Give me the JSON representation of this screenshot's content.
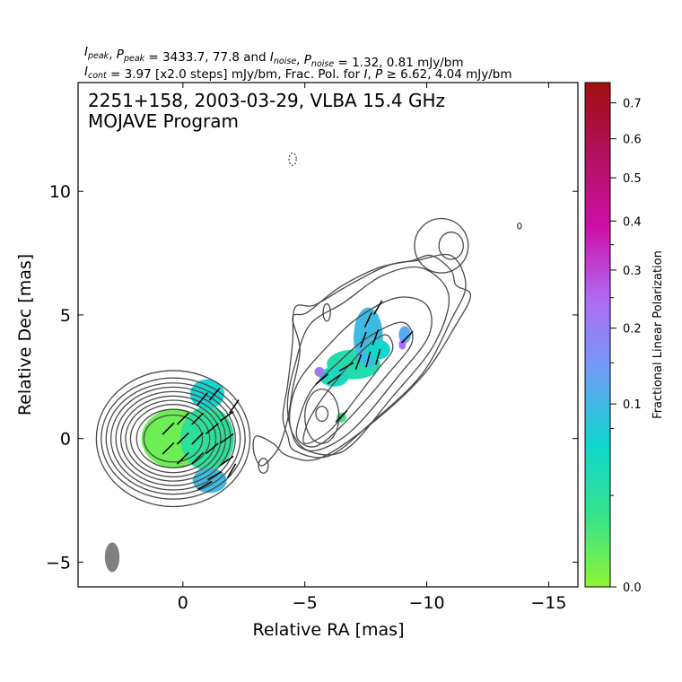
{
  "header": {
    "line1": "I_peak, P_peak = 3433.7, 77.8 and I_noise, P_noise = 1.32, 0.81 mJy/bm",
    "line2": "I_cont = 3.97 [x2.0 steps] mJy/bm, Frac. Pol. for I, P ≥ 6.62, 4.04 mJy/bm"
  },
  "plot_title": {
    "line1": "2251+158, 2003-03-29, VLBA 15.4 GHz",
    "line2": "MOJAVE Program"
  },
  "colorbar": {
    "label": "Fractional Linear Polarization",
    "ticks": [
      0.0,
      0.1,
      0.2,
      0.3,
      0.4,
      0.5,
      0.6,
      0.7
    ],
    "tick_labels": [
      "0.0",
      "0.1",
      "0.2",
      "0.3",
      "0.4",
      "0.5",
      "0.6",
      "0.7"
    ],
    "range": [
      0.0,
      0.76
    ],
    "colormap": [
      "#8ef534",
      "#34e28c",
      "#10d6d0",
      "#6f9ef8",
      "#b16af2",
      "#cd0fa8",
      "#b0125f",
      "#a00f0f"
    ]
  },
  "chart_data": {
    "type": "polarization_contour_map",
    "source": "2251+158",
    "date": "2003-03-29",
    "instrument": "VLBA 15.4 GHz",
    "program": "MOJAVE Program",
    "xlabel": "Relative RA [mas]",
    "ylabel": "Relative Dec [mas]",
    "xlim": [
      4.3,
      -16.2
    ],
    "ylim": [
      -6.0,
      14.4
    ],
    "xticks": [
      0,
      -5,
      -10,
      -15
    ],
    "xtick_labels": [
      "0",
      "−5",
      "−10",
      "−15"
    ],
    "yticks": [
      -5,
      0,
      5,
      10
    ],
    "ytick_labels": [
      "−5",
      "0",
      "5",
      "10"
    ],
    "I_peak_mJy_per_beam": 3433.7,
    "P_peak_mJy_per_beam": 77.8,
    "I_noise_mJy_per_beam": 1.32,
    "P_noise_mJy_per_beam": 0.81,
    "I_contour_base_mJy_per_beam": 3.97,
    "contour_step_factor": 2.0,
    "frac_pol_I_threshold_mJy_per_beam": 6.62,
    "frac_pol_P_threshold_mJy_per_beam": 4.04,
    "beam": {
      "ra": 2.9,
      "dec": -4.8,
      "major_mas": 1.2,
      "minor_mas": 0.6,
      "pa_deg": 0
    },
    "core_contours": {
      "center": [
        0.4,
        0.0
      ],
      "levels": [
        {
          "rx": 1.2,
          "ry": 0.95
        },
        {
          "rx": 1.5,
          "ry": 1.18
        },
        {
          "rx": 1.75,
          "ry": 1.38
        },
        {
          "rx": 1.95,
          "ry": 1.55
        },
        {
          "rx": 2.15,
          "ry": 1.72
        },
        {
          "rx": 2.35,
          "ry": 1.9
        },
        {
          "rx": 2.55,
          "ry": 2.08
        },
        {
          "rx": 2.75,
          "ry": 2.25
        },
        {
          "rx": 2.95,
          "ry": 2.45
        },
        {
          "rx": 3.15,
          "ry": 2.75
        }
      ]
    },
    "jet_contours": [
      [
        [
          -5.0,
          -0.2
        ],
        [
          -6.0,
          0.3
        ],
        [
          -7.0,
          1.5
        ],
        [
          -8.0,
          2.8
        ],
        [
          -8.6,
          3.6
        ],
        [
          -8.3,
          4.2
        ],
        [
          -7.4,
          3.6
        ],
        [
          -6.5,
          2.6
        ],
        [
          -5.7,
          1.6
        ],
        [
          -5.1,
          0.6
        ]
      ],
      [
        [
          -4.7,
          0.0
        ],
        [
          -5.5,
          -0.3
        ],
        [
          -6.8,
          0.8
        ],
        [
          -8.4,
          2.6
        ],
        [
          -9.4,
          3.9
        ],
        [
          -9.0,
          4.7
        ],
        [
          -7.6,
          4.1
        ],
        [
          -6.4,
          3.1
        ],
        [
          -5.3,
          2.0
        ],
        [
          -4.8,
          0.9
        ]
      ],
      [
        [
          -4.5,
          0.2
        ],
        [
          -5.3,
          -0.5
        ],
        [
          -6.9,
          0.3
        ],
        [
          -8.9,
          2.6
        ],
        [
          -10.1,
          4.2
        ],
        [
          -10.0,
          5.4
        ],
        [
          -8.8,
          5.7
        ],
        [
          -7.2,
          4.9
        ],
        [
          -5.9,
          3.7
        ],
        [
          -4.8,
          2.4
        ],
        [
          -4.4,
          1.2
        ]
      ],
      [
        [
          -4.4,
          0.5
        ],
        [
          -4.9,
          -0.4
        ],
        [
          -6.6,
          -0.5
        ],
        [
          -8.6,
          1.7
        ],
        [
          -10.3,
          3.8
        ],
        [
          -10.9,
          5.8
        ],
        [
          -9.8,
          6.9
        ],
        [
          -8.2,
          6.6
        ],
        [
          -6.6,
          5.5
        ],
        [
          -5.2,
          4.6
        ],
        [
          -4.6,
          3.0
        ],
        [
          -4.3,
          1.6
        ]
      ],
      [
        [
          -4.3,
          0.1
        ],
        [
          -4.6,
          -0.5
        ],
        [
          -6.0,
          -0.7
        ],
        [
          -7.8,
          0.7
        ],
        [
          -9.8,
          2.6
        ],
        [
          -11.0,
          4.8
        ],
        [
          -11.6,
          6.2
        ],
        [
          -11.0,
          7.4
        ],
        [
          -9.6,
          7.2
        ],
        [
          -8.4,
          7.0
        ],
        [
          -6.8,
          6.2
        ],
        [
          -5.4,
          5.4
        ],
        [
          -4.6,
          5.3
        ],
        [
          -4.5,
          3.9
        ],
        [
          -4.3,
          2.2
        ],
        [
          -4.1,
          0.9
        ]
      ],
      [
        [
          -3.0,
          0.1
        ],
        [
          -3.7,
          -0.2
        ],
        [
          -4.3,
          -0.7
        ],
        [
          -5.6,
          -0.8
        ],
        [
          -7.6,
          0.5
        ],
        [
          -9.8,
          2.5
        ],
        [
          -11.2,
          4.6
        ],
        [
          -11.8,
          5.8
        ],
        [
          -11.2,
          6.2
        ],
        [
          -11.0,
          6.8
        ],
        [
          -10.2,
          7.4
        ],
        [
          -9.4,
          7.2
        ],
        [
          -8.0,
          6.9
        ],
        [
          -6.4,
          6.1
        ],
        [
          -5.1,
          5.1
        ],
        [
          -4.5,
          4.9
        ],
        [
          -4.8,
          3.6
        ],
        [
          -4.5,
          2.0
        ],
        [
          -4.3,
          0.8
        ],
        [
          -4.0,
          -0.2
        ],
        [
          -3.7,
          -0.7
        ],
        [
          -3.2,
          -1.1
        ],
        [
          -2.9,
          -0.5
        ]
      ]
    ],
    "other_contours": [
      {
        "cx": -5.9,
        "cy": 5.1,
        "rx": 0.15,
        "ry": 0.35
      },
      {
        "cx": -5.7,
        "cy": 0.9,
        "rx": 0.7,
        "ry": 1.1
      },
      {
        "cx": -5.7,
        "cy": 1.0,
        "rx": 0.25,
        "ry": 0.3
      },
      {
        "cx": -11.0,
        "cy": 7.8,
        "rx": 0.5,
        "ry": 0.55
      },
      {
        "cx": -10.6,
        "cy": 7.8,
        "rx": 1.1,
        "ry": 1.1
      },
      {
        "cx": -3.3,
        "cy": -1.1,
        "rx": 0.2,
        "ry": 0.3
      },
      {
        "cx": -13.8,
        "cy": 8.6,
        "rx": 0.08,
        "ry": 0.12
      }
    ],
    "negative_contours": [
      {
        "cx": -4.5,
        "cy": 11.3,
        "rx": 0.15,
        "ry": 0.25
      }
    ],
    "frac_pol_regions": [
      {
        "cx": 0.3,
        "cy": 0.0,
        "rx": 1.4,
        "ry": 1.2,
        "m": 0.04
      },
      {
        "cx": -1.0,
        "cy": 0.0,
        "rx": 1.1,
        "ry": 1.3,
        "m": 0.13
      },
      {
        "cx": -1.0,
        "cy": 1.8,
        "rx": 0.7,
        "ry": 0.6,
        "m": 0.22
      },
      {
        "cx": -1.1,
        "cy": -1.7,
        "rx": 0.7,
        "ry": 0.5,
        "m": 0.27
      },
      {
        "cx": -7.0,
        "cy": 3.0,
        "rx": 1.1,
        "ry": 0.6,
        "m": 0.16
      },
      {
        "cx": -6.2,
        "cy": 2.5,
        "rx": 0.6,
        "ry": 0.4,
        "m": 0.19
      },
      {
        "cx": -7.6,
        "cy": 4.1,
        "rx": 0.6,
        "ry": 1.2,
        "m": 0.27
      },
      {
        "cx": -8.0,
        "cy": 3.6,
        "rx": 0.5,
        "ry": 0.4,
        "m": 0.21
      },
      {
        "cx": -5.6,
        "cy": 2.7,
        "rx": 0.2,
        "ry": 0.2,
        "m": 0.4
      },
      {
        "cx": -9.1,
        "cy": 4.2,
        "rx": 0.25,
        "ry": 0.35,
        "m": 0.3
      },
      {
        "cx": -9.0,
        "cy": 3.8,
        "rx": 0.15,
        "ry": 0.2,
        "m": 0.42
      },
      {
        "cx": -6.5,
        "cy": 0.85,
        "rx": 0.2,
        "ry": 0.2,
        "m": 0.1
      }
    ],
    "evpa_vectors": [
      {
        "ra": 0.0,
        "dec": 0.8,
        "pa": 45
      },
      {
        "ra": -0.6,
        "dec": 0.8,
        "pa": 45
      },
      {
        "ra": 0.6,
        "dec": 0.4,
        "pa": 45
      },
      {
        "ra": 0.0,
        "dec": 0.0,
        "pa": 45
      },
      {
        "ra": -0.6,
        "dec": 0.0,
        "pa": 45
      },
      {
        "ra": 0.6,
        "dec": -0.4,
        "pa": 45
      },
      {
        "ra": 0.0,
        "dec": -0.8,
        "pa": 45
      },
      {
        "ra": -0.6,
        "dec": -0.8,
        "pa": 45
      },
      {
        "ra": -1.2,
        "dec": 0.4,
        "pa": 50
      },
      {
        "ra": -1.2,
        "dec": -0.4,
        "pa": 50
      },
      {
        "ra": -1.8,
        "dec": 0.9,
        "pa": 55
      },
      {
        "ra": -1.8,
        "dec": 0.0,
        "pa": 55
      },
      {
        "ra": -1.8,
        "dec": -0.9,
        "pa": 55
      },
      {
        "ra": -1.3,
        "dec": 1.8,
        "pa": 40
      },
      {
        "ra": -0.8,
        "dec": 1.6,
        "pa": 40
      },
      {
        "ra": -1.3,
        "dec": -1.5,
        "pa": 60
      },
      {
        "ra": -0.9,
        "dec": -1.9,
        "pa": 60
      },
      {
        "ra": -2.0,
        "dec": -1.3,
        "pa": 30
      },
      {
        "ra": -2.1,
        "dec": 1.3,
        "pa": 35
      },
      {
        "ra": -5.7,
        "dec": 2.4,
        "pa": 50
      },
      {
        "ra": -6.2,
        "dec": 2.4,
        "pa": 55
      },
      {
        "ra": -6.7,
        "dec": 2.9,
        "pa": 60
      },
      {
        "ra": -7.2,
        "dec": 3.1,
        "pa": 20
      },
      {
        "ra": -7.6,
        "dec": 3.2,
        "pa": 15
      },
      {
        "ra": -8.0,
        "dec": 3.3,
        "pa": 15
      },
      {
        "ra": -7.4,
        "dec": 4.0,
        "pa": 20
      },
      {
        "ra": -7.9,
        "dec": 4.1,
        "pa": 20
      },
      {
        "ra": -7.6,
        "dec": 4.8,
        "pa": 25
      },
      {
        "ra": -8.0,
        "dec": 5.3,
        "pa": 30
      },
      {
        "ra": -6.5,
        "dec": 0.9,
        "pa": 45
      },
      {
        "ra": -9.2,
        "dec": 4.1,
        "pa": 45
      }
    ]
  }
}
